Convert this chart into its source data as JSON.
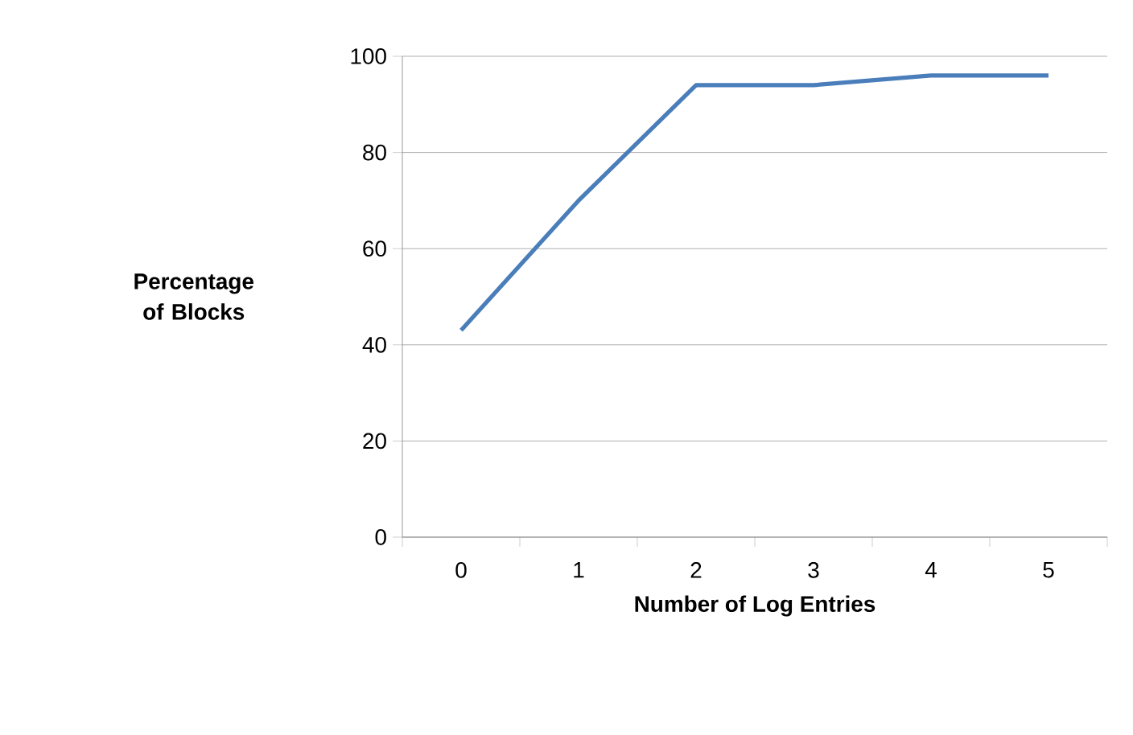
{
  "chart_data": {
    "type": "line",
    "xlabel": "Number of Log Entries",
    "ylabel": "Percentage of Blocks",
    "categories": [
      "0",
      "1",
      "2",
      "3",
      "4",
      "5"
    ],
    "series": [
      {
        "color": "#4a7ebb",
        "values": [
          43,
          70,
          94,
          94,
          96,
          96
        ]
      }
    ],
    "ylim": [
      0,
      100
    ],
    "yticks": [
      0,
      20,
      40,
      60,
      80,
      100
    ],
    "grid": "y"
  }
}
